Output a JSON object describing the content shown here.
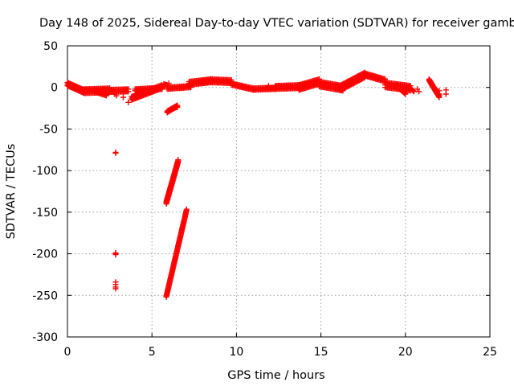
{
  "chart_data": {
    "type": "scatter",
    "title": "Day 148 of 2025, Sidereal Day-to-day VTEC variation (SDTVAR) for receiver gamb",
    "xlabel": "GPS time / hours",
    "ylabel": "SDTVAR / TECUs",
    "xlim": [
      0,
      25
    ],
    "ylim": [
      -300,
      50
    ],
    "xticks": [
      0,
      5,
      10,
      15,
      20,
      25
    ],
    "yticks": [
      -300,
      -250,
      -200,
      -150,
      -100,
      -50,
      0,
      50
    ],
    "grid": true,
    "marker": "+",
    "series": [
      {
        "name": "SDTVAR",
        "color": "#ff0000",
        "segments": [
          {
            "from": [
              0.0,
              6
            ],
            "to": [
              1.0,
              -3
            ],
            "rows": [
              0,
              -2,
              -4
            ]
          },
          {
            "from": [
              1.0,
              -2
            ],
            "to": [
              2.5,
              -1
            ],
            "rows": [
              0,
              -2,
              -5
            ]
          },
          {
            "from": [
              1.6,
              -5
            ],
            "to": [
              2.3,
              -10
            ],
            "rows": [
              0
            ]
          },
          {
            "from": [
              2.0,
              -3
            ],
            "to": [
              3.6,
              -2
            ],
            "rows": [
              0,
              -3
            ]
          },
          {
            "from": [
              3.8,
              -15
            ],
            "to": [
              5.6,
              -1
            ],
            "rows": [
              0,
              2,
              4
            ]
          },
          {
            "from": [
              4.0,
              -2
            ],
            "to": [
              5.6,
              0
            ],
            "rows": [
              0,
              -2
            ]
          },
          {
            "from": [
              5.7,
              4
            ],
            "to": [
              5.9,
              3
            ],
            "rows": [
              0
            ]
          },
          {
            "from": [
              5.9,
              0
            ],
            "to": [
              7.3,
              2
            ],
            "rows": [
              0,
              -2
            ]
          },
          {
            "from": [
              5.9,
              -30
            ],
            "to": [
              6.5,
              -23
            ],
            "rows": [
              0,
              1.5
            ]
          },
          {
            "from": [
              7.2,
              3
            ],
            "to": [
              8.5,
              6
            ],
            "rows": [
              0,
              2,
              4
            ]
          },
          {
            "from": [
              8.5,
              6
            ],
            "to": [
              9.7,
              5
            ],
            "rows": [
              0,
              2,
              4
            ]
          },
          {
            "from": [
              9.7,
              5
            ],
            "to": [
              11.0,
              -1
            ],
            "rows": [
              0,
              -2
            ]
          },
          {
            "from": [
              11.0,
              -1
            ],
            "to": [
              12.3,
              0
            ],
            "rows": [
              0,
              -2
            ]
          },
          {
            "from": [
              12.3,
              2
            ],
            "to": [
              13.7,
              3
            ],
            "rows": [
              0,
              -2,
              -4
            ]
          },
          {
            "from": [
              13.7,
              3
            ],
            "to": [
              14.9,
              10
            ],
            "rows": [
              0,
              -3,
              -6
            ]
          },
          {
            "from": [
              14.9,
              7
            ],
            "to": [
              16.3,
              2
            ],
            "rows": [
              0,
              -3,
              -6
            ]
          },
          {
            "from": [
              16.2,
              3
            ],
            "to": [
              17.6,
              18
            ],
            "rows": [
              0,
              -3,
              -6
            ]
          },
          {
            "from": [
              17.6,
              17
            ],
            "to": [
              18.8,
              10
            ],
            "rows": [
              0,
              -3
            ]
          },
          {
            "from": [
              18.8,
              6
            ],
            "to": [
              20.3,
              2
            ],
            "rows": [
              0,
              -3,
              -6
            ]
          },
          {
            "from": [
              19.5,
              3
            ],
            "to": [
              20.0,
              -6
            ],
            "rows": [
              0,
              -2
            ]
          },
          {
            "from": [
              20.2,
              1
            ],
            "to": [
              20.5,
              -5
            ],
            "rows": [
              0
            ]
          },
          {
            "from": [
              21.4,
              8
            ],
            "to": [
              22.0,
              -12
            ],
            "rows": [
              0,
              2
            ]
          },
          {
            "from": [
              5.85,
              -140
            ],
            "to": [
              6.55,
              -90
            ],
            "rows": [
              0,
              1.5,
              3
            ]
          },
          {
            "from": [
              5.85,
              -252
            ],
            "to": [
              7.05,
              -148
            ],
            "rows": [
              0,
              1.5
            ]
          }
        ],
        "points": [
          [
            20.7,
            -2
          ],
          [
            20.8,
            -5
          ],
          [
            21.8,
            -2
          ],
          [
            22.0,
            -4
          ],
          [
            22.0,
            -8
          ],
          [
            22.4,
            -3
          ],
          [
            22.4,
            -8
          ],
          [
            2.8,
            -8
          ],
          [
            2.9,
            -10
          ],
          [
            3.3,
            -12
          ],
          [
            3.6,
            -18
          ],
          [
            6.3,
            -25
          ],
          [
            6.5,
            -24
          ],
          [
            5.9,
            -30
          ],
          [
            6.0,
            5
          ],
          [
            11.9,
            2
          ],
          [
            12.5,
            2
          ],
          [
            2.85,
            -79
          ],
          [
            2.85,
            -78
          ],
          [
            2.85,
            -199
          ],
          [
            2.85,
            -200
          ],
          [
            2.85,
            -201
          ],
          [
            2.85,
            -234
          ],
          [
            2.85,
            -237
          ],
          [
            2.85,
            -240
          ],
          [
            2.85,
            -242
          ]
        ]
      }
    ]
  }
}
